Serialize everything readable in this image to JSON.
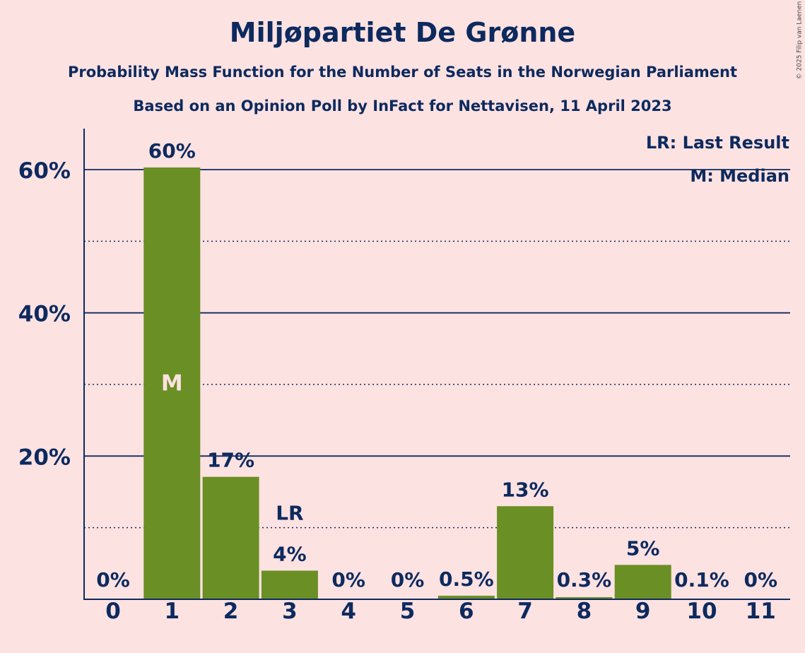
{
  "title": "Miljøpartiet De Grønne",
  "subtitle1": "Probability Mass Function for the Number of Seats in the Norwegian Parliament",
  "subtitle2": "Based on an Opinion Poll by InFact for Nettavisen, 11 April 2023",
  "copyright": "© 2025 Filip van Laenen",
  "legend": [
    "LR: Last Result",
    "M: Median"
  ],
  "colors": {
    "bar": "#6a8f24",
    "axis": "#0d2a5e",
    "background": "#fde2e2",
    "median_text": "#fde2e2"
  },
  "chart_data": {
    "type": "bar",
    "categories": [
      "0",
      "1",
      "2",
      "3",
      "4",
      "5",
      "6",
      "7",
      "8",
      "9",
      "10",
      "11"
    ],
    "values": [
      0,
      60.3,
      17.1,
      4.0,
      0,
      0,
      0.5,
      13.0,
      0.3,
      4.8,
      0.1,
      0
    ],
    "value_labels": [
      "0%",
      "60%",
      "17%",
      "4%",
      "0%",
      "0%",
      "0.5%",
      "13%",
      "0.3%",
      "5%",
      "0.1%",
      "0%"
    ],
    "ylim": [
      0,
      65
    ],
    "yticks": [
      20,
      40,
      60
    ],
    "ytick_labels": [
      "20%",
      "40%",
      "60%"
    ],
    "minor_gridlines": [
      10,
      30,
      50
    ],
    "median_category": "1",
    "median_label": "M",
    "last_result_category": "3",
    "last_result_label": "LR",
    "legend_position": "top-right"
  }
}
